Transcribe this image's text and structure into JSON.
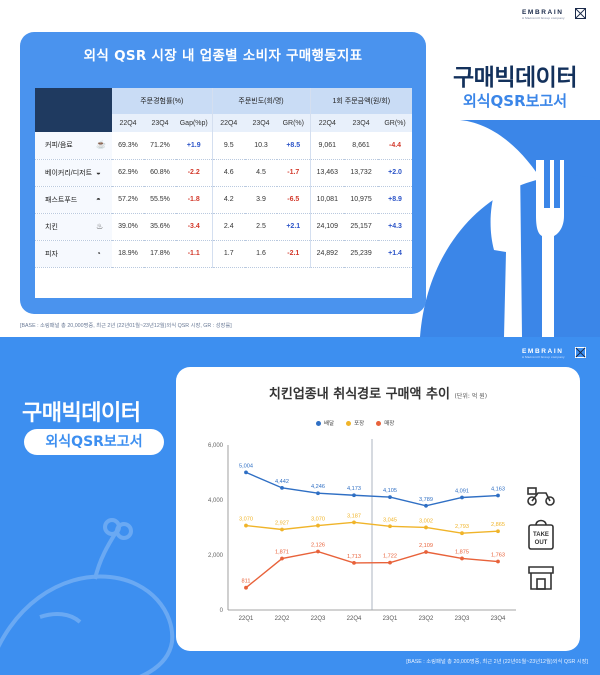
{
  "brand": {
    "name": "EMBRAIN",
    "tagline": "A Macromill Group company"
  },
  "top": {
    "card_title": "외식 QSR 시장 내 업종별 소비자 구매행동지표",
    "big_title": "구매빅데이터",
    "big_subtitle": "외식QSR보고서",
    "groups": [
      "주문경험률(%)",
      "주문빈도(회/명)",
      "1회 주문금액(원/회)"
    ],
    "subheaders": [
      "22Q4",
      "23Q4",
      "Gap(%p)",
      "22Q4",
      "23Q4",
      "GR(%)",
      "22Q4",
      "23Q4",
      "GR(%)"
    ],
    "rows": [
      {
        "cat": "커피/음료",
        "icon": "coffee-cup-icon",
        "vals": [
          "69.3%",
          "71.2%",
          "+1.9",
          "9.5",
          "10.3",
          "+8.5",
          "9,061",
          "8,661",
          "-4.4"
        ]
      },
      {
        "cat": "베이커리/디저트",
        "icon": "dessert-icon",
        "vals": [
          "62.9%",
          "60.8%",
          "-2.2",
          "4.6",
          "4.5",
          "-1.7",
          "13,463",
          "13,732",
          "+2.0"
        ]
      },
      {
        "cat": "패스트푸드",
        "icon": "burger-icon",
        "vals": [
          "57.2%",
          "55.5%",
          "-1.8",
          "4.2",
          "3.9",
          "-6.5",
          "10,081",
          "10,975",
          "+8.9"
        ]
      },
      {
        "cat": "치킨",
        "icon": "chicken-icon",
        "vals": [
          "39.0%",
          "35.6%",
          "-3.4",
          "2.4",
          "2.5",
          "+2.1",
          "24,109",
          "25,157",
          "+4.3"
        ]
      },
      {
        "cat": "피자",
        "icon": "pizza-icon",
        "vals": [
          "18.9%",
          "17.8%",
          "-1.1",
          "1.7",
          "1.6",
          "-2.1",
          "24,892",
          "25,239",
          "+1.4"
        ]
      }
    ],
    "source": "[BASE : 소링패널 총 20,000명중, 최근 2년 (22년01월~23년12월)외식 QSR 시장, GR : 성장률]"
  },
  "bottom": {
    "big_title": "구매빅데이터",
    "big_subtitle": "외식QSR보고서",
    "source": "[BASE : 소링패널 총 20,000명중, 최근 2년 (22년01월~23년12월)외식 QSR 시장]",
    "takeout_label_1": "TAKE",
    "takeout_label_2": "OUT"
  },
  "colors": {
    "delivery": "#2f6fc4",
    "takeout": "#f0b429",
    "dinein": "#e8623a",
    "accent": "#3d8ff0"
  },
  "chart_data": {
    "type": "line",
    "title": "치킨업종내 취식경로 구매액 추이",
    "unit_label": "(단위: 억 원)",
    "categories": [
      "22Q1",
      "22Q2",
      "22Q3",
      "22Q4",
      "23Q1",
      "23Q2",
      "23Q3",
      "23Q4"
    ],
    "series": [
      {
        "name": "배달",
        "color": "#2f6fc4",
        "values": [
          5004,
          4442,
          4246,
          4173,
          4105,
          3789,
          4091,
          4163
        ],
        "labels": [
          "5,004",
          "4,442",
          "4,246",
          "4,173",
          "4,105",
          "3,789",
          "4,091",
          "4,163"
        ]
      },
      {
        "name": "포장",
        "color": "#f0b429",
        "values": [
          3070,
          2927,
          3070,
          3187,
          3045,
          3002,
          2793,
          2865
        ],
        "labels": [
          "3,070",
          "2,927",
          "3,070",
          "3,187",
          "3,045",
          "3,002",
          "2,793",
          "2,865"
        ]
      },
      {
        "name": "매장",
        "color": "#e8623a",
        "values": [
          811,
          1871,
          2126,
          1713,
          1722,
          2109,
          1875,
          1763
        ],
        "labels": [
          "811",
          "1,871",
          "2,126",
          "1,713",
          "1,722",
          "2,109",
          "1,875",
          "1,763"
        ]
      }
    ],
    "yticks": [
      "0",
      "2,000",
      "4,000",
      "6,000"
    ],
    "ylim": [
      0,
      6000
    ],
    "grid": false,
    "divider_after": "22Q4"
  }
}
